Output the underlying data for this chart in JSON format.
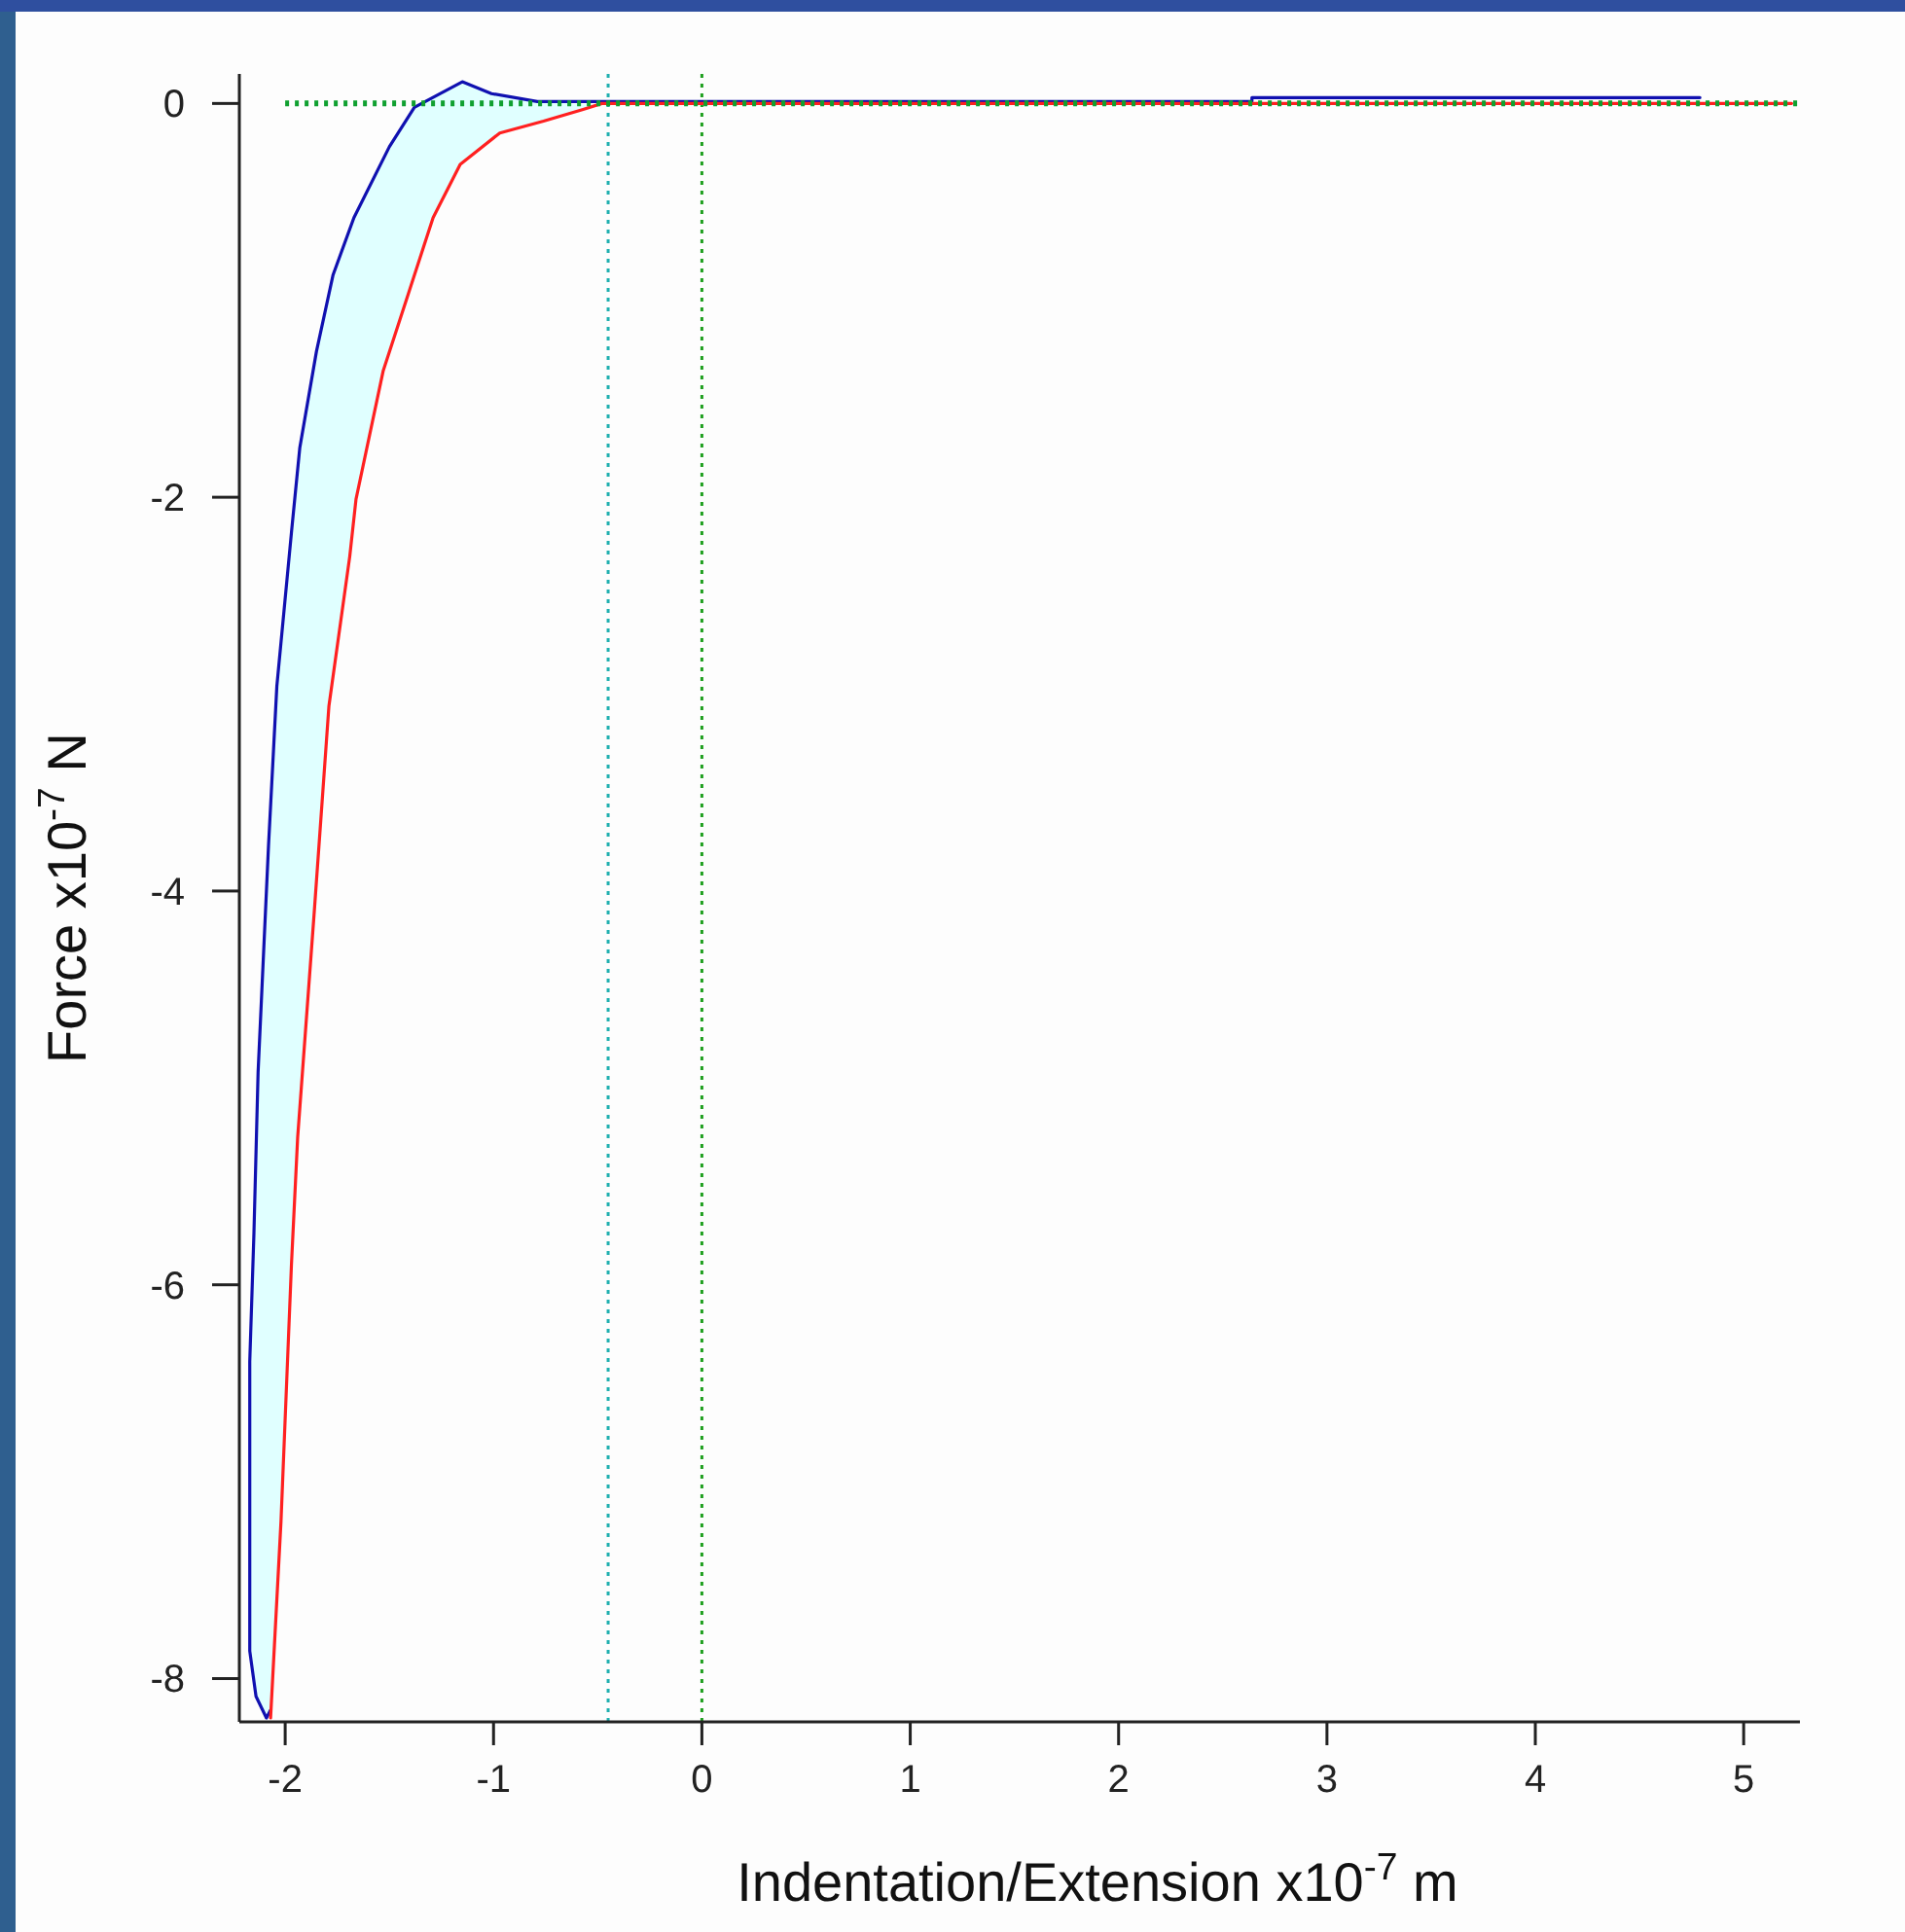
{
  "chart_data": {
    "type": "line",
    "xlabel": "Indentation/Extension x10$^{-7}$ m",
    "ylabel": "Force x10$^{-7}$ N",
    "xlim": [
      -2.22,
      5.27
    ],
    "ylim": [
      -8.22,
      0.15
    ],
    "xticks": [
      -2,
      -1,
      0,
      1,
      2,
      3,
      4,
      5
    ],
    "yticks": [
      -8,
      -6,
      -4,
      -2,
      0
    ],
    "grid": false,
    "marker": "none",
    "series": [
      {
        "type": "area",
        "color": "#e0ffff",
        "x": [
          -2.07,
          -2.09,
          -2.14,
          -2.17,
          -2.17,
          -2.15,
          -2.13,
          -2.08,
          -2.04,
          -1.97,
          -1.93,
          -1.85,
          -1.77,
          -1.67,
          -1.5,
          -1.38,
          -1.15,
          -1.01,
          -0.79,
          -0.48,
          -0.57,
          -0.76,
          -0.97,
          -1.16,
          -1.29,
          -1.41,
          -1.53,
          -1.66,
          -1.69,
          -1.79,
          -1.86,
          -1.94,
          -1.97,
          -2.02,
          -2.07
        ],
        "values": [
          -8.16,
          -8.2,
          -8.09,
          -7.86,
          -6.39,
          -5.74,
          -4.92,
          -3.77,
          -2.96,
          -2.18,
          -1.75,
          -1.26,
          -0.87,
          -0.58,
          -0.22,
          -0.02,
          0.11,
          0.05,
          0.01,
          -0.01,
          -0.03,
          -0.09,
          -0.15,
          -0.31,
          -0.58,
          -0.97,
          -1.36,
          -2.01,
          -2.3,
          -3.06,
          -4.1,
          -5.25,
          -5.9,
          -7.2,
          -8.2
        ]
      },
      {
        "color": "#1010b0",
        "line_style": "solid",
        "x": [
          -2.07,
          -2.09,
          -2.14,
          -2.17,
          -2.17,
          -2.15,
          -2.13,
          -2.08,
          -2.04,
          -1.97,
          -1.93,
          -1.85,
          -1.77,
          -1.67,
          -1.5,
          -1.38,
          -1.15,
          -1.01,
          -0.79,
          2.64,
          2.64,
          4.79
        ],
        "values": [
          -8.16,
          -8.2,
          -8.09,
          -7.86,
          -6.39,
          -5.74,
          -4.92,
          -3.77,
          -2.96,
          -2.18,
          -1.75,
          -1.26,
          -0.87,
          -0.58,
          -0.22,
          -0.02,
          0.11,
          0.05,
          0.01,
          0.01,
          0.03,
          0.03
        ]
      },
      {
        "color": "#ff2020",
        "line_style": "solid",
        "x": [
          -2.07,
          -2.02,
          -1.97,
          -1.94,
          -1.86,
          -1.79,
          -1.69,
          -1.66,
          -1.53,
          -1.41,
          -1.29,
          -1.16,
          -0.97,
          -0.76,
          -0.57,
          -0.48,
          5.23
        ],
        "values": [
          -8.2,
          -7.2,
          -5.9,
          -5.25,
          -4.1,
          -3.06,
          -2.3,
          -2.01,
          -1.36,
          -0.97,
          -0.58,
          -0.31,
          -0.15,
          -0.09,
          -0.03,
          0,
          0
        ]
      },
      {
        "color": "#10a030",
        "line_style": "dotted",
        "x": [
          -2,
          5.27
        ],
        "values": [
          0,
          0
        ]
      }
    ],
    "ref_lines": [
      {
        "axis": "x",
        "value": -0.45,
        "color": "#20b0b0",
        "line_style": "dotted"
      },
      {
        "axis": "x",
        "value": 0,
        "color": "#20a020",
        "line_style": "dotted"
      }
    ]
  }
}
